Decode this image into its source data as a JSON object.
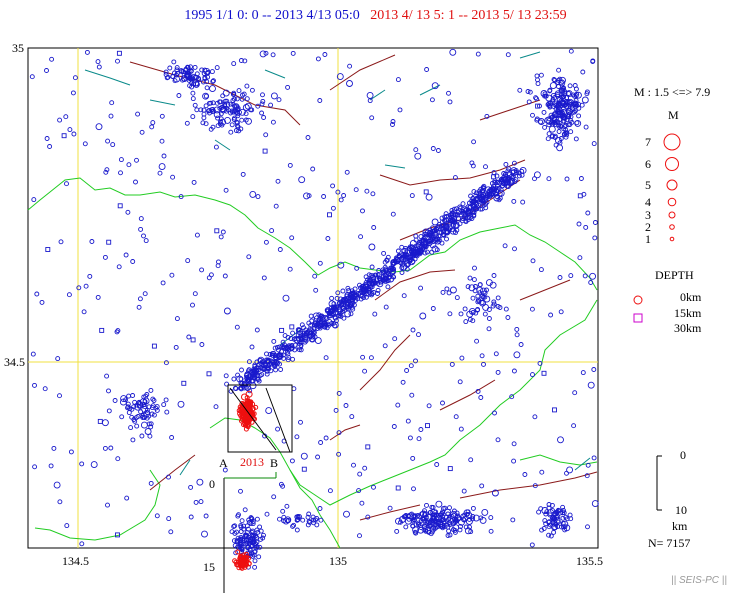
{
  "header": {
    "range_main": "1995 1/1 0: 0 -- 2013 4/13 05:0",
    "range_recent": "2013  4/ 13  5: 1 --  2013  5/ 13 23:59"
  },
  "axes": {
    "lat_top": "35",
    "lat_mid": "34.5",
    "lon_left": "134.5",
    "lon_mid": "135",
    "lon_right": "135.5"
  },
  "legend": {
    "mag_range": "M : 1.5 <=> 7.9",
    "mag_title": "M",
    "mag_classes": [
      "7",
      "6",
      "5",
      "4",
      "3",
      "2",
      "1"
    ],
    "depth_title": "DEPTH",
    "depth_classes": [
      "0km",
      "15km",
      "30km"
    ],
    "scale_top": "0",
    "scale_bottom": "10",
    "scale_unit": "km",
    "count": "N= 7157"
  },
  "cross_section": {
    "label_a": "A",
    "label_b": "B",
    "year": "2013",
    "depth_top": "0",
    "depth_bottom": "15"
  },
  "credit": "|| SEIS-PC ||",
  "colors": {
    "background_events": "#1a1acc",
    "recent_events": "#ee1010",
    "coastline": "#22cc22",
    "faults": "#8b1a1a",
    "rivers": "#0a8a8a",
    "grid": "#f0e040",
    "deep_marker": "#cc00cc"
  }
}
